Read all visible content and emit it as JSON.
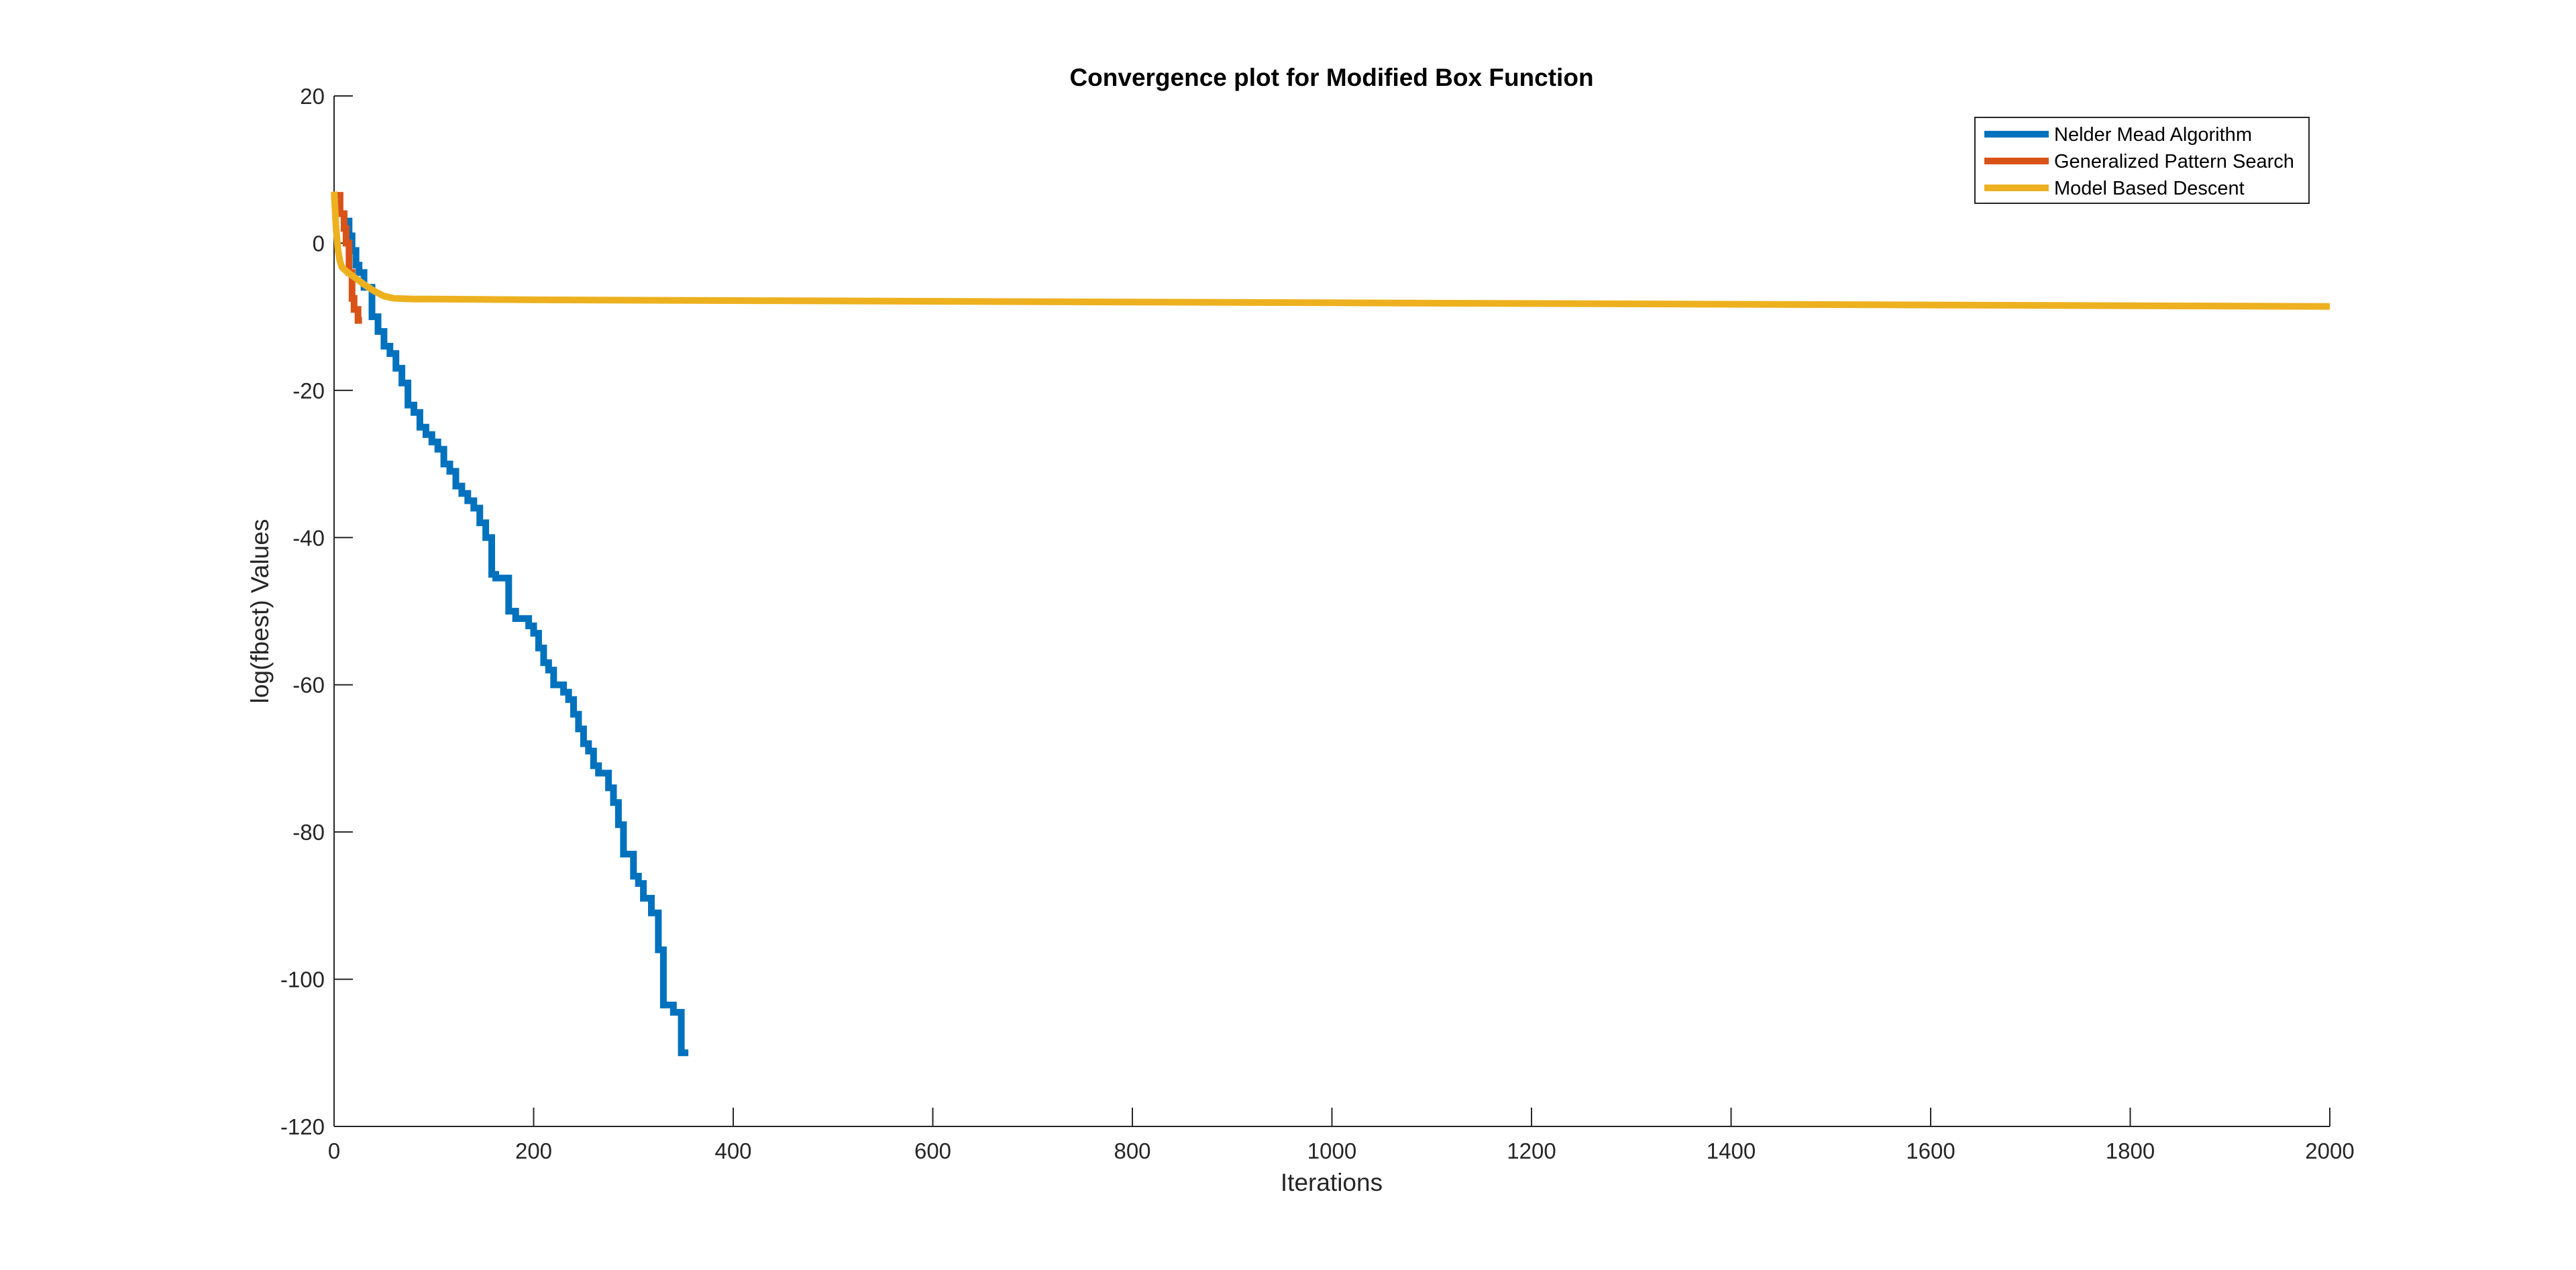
{
  "chart_data": {
    "type": "line",
    "title": "Convergence plot for Modified Box Function",
    "xlabel": "Iterations",
    "ylabel": "log(fbest) Values",
    "xlim": [
      0,
      2000
    ],
    "ylim": [
      -120,
      20
    ],
    "xticks": [
      0,
      200,
      400,
      600,
      800,
      1000,
      1200,
      1400,
      1600,
      1800,
      2000
    ],
    "yticks": [
      20,
      0,
      -20,
      -40,
      -60,
      -80,
      -100,
      -120
    ],
    "xtick_labels": [
      "0",
      "200",
      "400",
      "600",
      "800",
      "1000",
      "1200",
      "1400",
      "1600",
      "1800",
      "2000"
    ],
    "ytick_labels": [
      "20",
      "0",
      "-20",
      "-40",
      "-60",
      "-80",
      "-100",
      "-120"
    ],
    "grid": false,
    "legend_position": "top-right",
    "series": [
      {
        "name": "Nelder Mead Algorithm",
        "color": "#0072BD",
        "x": [
          0,
          5,
          5,
          10,
          10,
          15,
          15,
          18,
          18,
          22,
          22,
          25,
          25,
          30,
          30,
          38,
          38,
          44,
          44,
          50,
          50,
          56,
          56,
          62,
          62,
          68,
          68,
          74,
          74,
          80,
          80,
          86,
          86,
          92,
          92,
          98,
          98,
          104,
          104,
          110,
          110,
          116,
          116,
          122,
          122,
          128,
          128,
          134,
          134,
          140,
          140,
          146,
          146,
          152,
          152,
          158,
          158,
          162,
          162,
          175,
          175,
          182,
          182,
          195,
          195,
          200,
          200,
          205,
          205,
          210,
          210,
          215,
          215,
          220,
          220,
          230,
          230,
          235,
          235,
          240,
          240,
          245,
          245,
          250,
          250,
          255,
          255,
          260,
          260,
          265,
          265,
          275,
          275,
          280,
          280,
          285,
          285,
          290,
          290,
          300,
          300,
          305,
          305,
          310,
          310,
          318,
          318,
          325,
          325,
          330,
          330,
          340,
          340,
          348,
          348,
          355
        ],
        "y": [
          6,
          6,
          4,
          4,
          3,
          3,
          1,
          1,
          -1,
          -1,
          -3,
          -3,
          -4,
          -4,
          -6,
          -6,
          -10,
          -10,
          -12,
          -12,
          -14,
          -14,
          -15,
          -15,
          -17,
          -17,
          -19,
          -19,
          -22,
          -22,
          -23,
          -23,
          -25,
          -25,
          -26,
          -26,
          -27,
          -27,
          -28,
          -28,
          -30,
          -30,
          -31,
          -31,
          -33,
          -33,
          -34,
          -34,
          -35,
          -35,
          -36,
          -36,
          -38,
          -38,
          -40,
          -40,
          -45,
          -45,
          -45.5,
          -45.5,
          -50,
          -50,
          -51,
          -51,
          -52,
          -52,
          -53,
          -53,
          -55,
          -55,
          -57,
          -57,
          -58,
          -58,
          -60,
          -60,
          -61,
          -61,
          -62,
          -62,
          -64,
          -64,
          -66,
          -66,
          -68,
          -68,
          -69,
          -69,
          -71,
          -71,
          -72,
          -72,
          -74,
          -74,
          -76,
          -76,
          -79,
          -79,
          -83,
          -83,
          -86,
          -86,
          -87,
          -87,
          -89,
          -89,
          -91,
          -91,
          -96,
          -96,
          -103.5,
          -103.5,
          -104.5,
          -104.5,
          -110,
          -110
        ]
      },
      {
        "name": "Generalized Pattern Search",
        "color": "#D95319",
        "x": [
          0,
          6,
          6,
          10,
          10,
          12,
          12,
          15,
          15,
          18,
          18,
          20,
          20,
          24,
          24,
          28
        ],
        "y": [
          6.5,
          6.5,
          4,
          4,
          2,
          2,
          0,
          0,
          -4,
          -4,
          -7.5,
          -7.5,
          -9,
          -9,
          -10.5,
          -10.5
        ]
      },
      {
        "name": "Model Based Descent",
        "color": "#EDB120",
        "x": [
          0,
          2,
          4,
          6,
          8,
          12,
          20,
          30,
          40,
          50,
          60,
          80,
          100,
          200,
          400,
          600,
          800,
          1000,
          1200,
          1400,
          1600,
          1800,
          2000
        ],
        "y": [
          7,
          2,
          -1,
          -2.5,
          -3.3,
          -3.8,
          -4.6,
          -5.6,
          -6.5,
          -7.2,
          -7.5,
          -7.6,
          -7.6,
          -7.7,
          -7.8,
          -7.9,
          -8.0,
          -8.1,
          -8.2,
          -8.3,
          -8.4,
          -8.5,
          -8.6
        ]
      }
    ]
  }
}
